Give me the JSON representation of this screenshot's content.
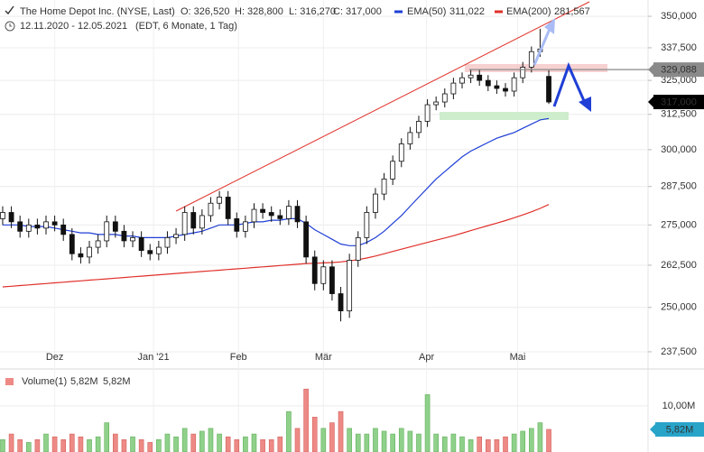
{
  "chart_data": {
    "type": "candlestick",
    "header": {
      "title": "The Home Depot Inc. (NYSE, Last)",
      "open": "O: 326,520",
      "high": "H: 328,800",
      "low": "L: 316,270",
      "close": "C: 317,000",
      "range": "12.11.2020 - 12.05.2021",
      "period": "(EDT, 6 Monate, 1 Tag)"
    },
    "log_scale": true,
    "grid": true,
    "ylim": [
      233.8,
      354.8
    ],
    "yticks": [
      {
        "value": 237.5,
        "label": "237,500"
      },
      {
        "value": 250,
        "label": "250,000"
      },
      {
        "value": 262.5,
        "label": "262,500"
      },
      {
        "value": 275,
        "label": "275,000"
      },
      {
        "value": 287.5,
        "label": "287,500"
      },
      {
        "value": 300,
        "label": "300,000"
      },
      {
        "value": 312.5,
        "label": "312,500"
      },
      {
        "value": 325,
        "label": "325,000"
      },
      {
        "value": 337.5,
        "label": "337,500"
      },
      {
        "value": 350,
        "label": "350,000"
      }
    ],
    "xlim": [
      -0.31,
      74.45
    ],
    "xticks": [
      {
        "value": 6,
        "label": "Dez"
      },
      {
        "value": 17.4,
        "label": "Jan '21"
      },
      {
        "value": 27.2,
        "label": "Feb"
      },
      {
        "value": 37,
        "label": "Mär"
      },
      {
        "value": 48.9,
        "label": "Apr"
      },
      {
        "value": 59.4,
        "label": "Mai"
      }
    ],
    "open": [
      277,
      279,
      276,
      273,
      275,
      274,
      276,
      275,
      272,
      266,
      265,
      268,
      270,
      276,
      273,
      270,
      271,
      267,
      266,
      268,
      271,
      272,
      279,
      274,
      278,
      282,
      284,
      277,
      273,
      276,
      280,
      279,
      278,
      277,
      281,
      276,
      265,
      257,
      262,
      254,
      249,
      264,
      271,
      279,
      285,
      290,
      296,
      302,
      306,
      310,
      316,
      317,
      320,
      324,
      326,
      327,
      325,
      323,
      322,
      321,
      326,
      330,
      336,
      326.52
    ],
    "high": [
      281,
      281,
      278,
      277,
      277,
      278,
      278,
      277,
      274,
      268,
      270,
      272,
      278,
      278,
      275,
      273,
      273,
      269,
      270,
      273,
      274,
      281,
      281,
      280,
      284,
      286,
      286,
      279,
      278,
      282,
      282,
      281,
      280,
      283,
      283,
      278,
      267,
      264,
      264,
      256,
      266,
      273,
      281,
      287,
      292,
      298,
      304,
      308,
      312,
      318,
      319,
      322,
      326,
      328,
      329,
      329,
      327,
      325,
      324,
      328,
      332,
      338,
      345,
      328.8
    ],
    "low": [
      275,
      274,
      271,
      271,
      272,
      272,
      273,
      270,
      264,
      263,
      263,
      266,
      268,
      271,
      268,
      268,
      265,
      264,
      264,
      266,
      269,
      270,
      272,
      272,
      276,
      280,
      275,
      271,
      271,
      274,
      277,
      276,
      275,
      275,
      274,
      263,
      255,
      255,
      252,
      246,
      247,
      262,
      269,
      277,
      283,
      288,
      294,
      300,
      304,
      308,
      314,
      315,
      318,
      322,
      324,
      323,
      321,
      320,
      319,
      319,
      324,
      328,
      334,
      316.27
    ],
    "close": [
      279,
      276,
      273,
      275,
      274,
      276,
      275,
      272,
      266,
      265,
      268,
      270,
      276,
      273,
      270,
      271,
      267,
      266,
      268,
      271,
      272,
      279,
      274,
      278,
      282,
      284,
      277,
      273,
      276,
      280,
      279,
      278,
      277,
      281,
      276,
      265,
      257,
      262,
      254,
      249,
      264,
      271,
      279,
      285,
      290,
      296,
      302,
      306,
      310,
      316,
      317,
      320,
      324,
      326,
      327,
      325,
      323,
      322,
      321,
      326,
      330,
      336,
      337,
      317
    ],
    "series": [
      {
        "name": "EMA(50)",
        "value_label": "311,022",
        "color": "#1f3fd6",
        "values": [
          275,
          275,
          275,
          274.5,
          274.5,
          274.5,
          274,
          273.5,
          273,
          272.5,
          272.5,
          272,
          272,
          272,
          271.5,
          271.5,
          271,
          271,
          271,
          271,
          271.5,
          272,
          272.5,
          273,
          274,
          275,
          275,
          275,
          275.5,
          276,
          276,
          276.5,
          276.5,
          277,
          277,
          275.5,
          273.5,
          272,
          270.5,
          269,
          268.5,
          268.5,
          269.5,
          271,
          273,
          275.5,
          278,
          281,
          284,
          287,
          290,
          292.5,
          295,
          297.5,
          299.5,
          301,
          302.5,
          304,
          305,
          306,
          307.5,
          309,
          310.5,
          311.022
        ]
      },
      {
        "name": "EMA(200)",
        "value_label": "281,567",
        "color": "#e0302a",
        "values": [
          256,
          256.2,
          256.4,
          256.6,
          256.8,
          257,
          257.2,
          257.4,
          257.6,
          257.8,
          258,
          258.2,
          258.4,
          258.6,
          258.8,
          259,
          259.2,
          259.4,
          259.6,
          259.8,
          260,
          260.2,
          260.4,
          260.6,
          260.8,
          261,
          261.2,
          261.4,
          261.6,
          261.8,
          262,
          262.2,
          262.4,
          262.6,
          262.8,
          263,
          263.1,
          263.2,
          263.3,
          263.5,
          263.8,
          264.2,
          264.7,
          265.3,
          266,
          266.7,
          267.4,
          268.1,
          268.8,
          269.5,
          270.2,
          270.9,
          271.6,
          272.4,
          273.2,
          274,
          274.8,
          275.6,
          276.4,
          277.3,
          278.2,
          279.2,
          280.3,
          281.567
        ]
      }
    ],
    "price_lines": [
      {
        "value": 329.088,
        "label": "329,088",
        "color": "#8a8a8a"
      },
      {
        "value": 317,
        "label": "317,000",
        "color": "#000000"
      }
    ],
    "volume": {
      "name": "Volume(1)",
      "value_label": "5,82M",
      "avg_label": "5,82M",
      "up_color": "#8fd18a",
      "down_color": "#ee8a86",
      "ylim": [
        1.8,
        15.6
      ],
      "yticks": [
        {
          "value": 10,
          "label": "10,00M"
        }
      ],
      "tag": "5,82M",
      "values": [
        4,
        5,
        4,
        3.5,
        4,
        5,
        4.5,
        4,
        5,
        4.5,
        4,
        4.5,
        7,
        5,
        4,
        4.5,
        4,
        3.5,
        4,
        5,
        4.5,
        6,
        5,
        5.5,
        6,
        5,
        4.5,
        4,
        4.5,
        5,
        4,
        4,
        4.5,
        9,
        6,
        13,
        8,
        6,
        7,
        9,
        6,
        5,
        5,
        6,
        5.5,
        5,
        6,
        5.5,
        5,
        12,
        5,
        4.5,
        5,
        4.5,
        4,
        4.5,
        4,
        4,
        4.5,
        5,
        5.5,
        6,
        7,
        5.82
      ]
    }
  }
}
